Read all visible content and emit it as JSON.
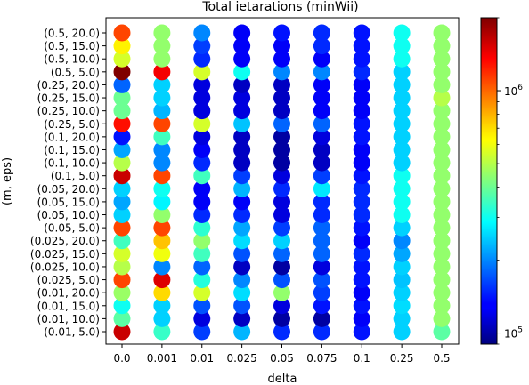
{
  "chart_data": {
    "type": "scatter",
    "title": "Total ietarations (minWii)",
    "xlabel": "delta",
    "ylabel": "(m, eps)",
    "x_categories": [
      "0.0",
      "0.001",
      "0.01",
      "0.025",
      "0.05",
      "0.075",
      "0.1",
      "0.25",
      "0.5"
    ],
    "y_categories": [
      "(0.01, 5.0)",
      "(0.01, 10.0)",
      "(0.01, 15.0)",
      "(0.01, 20.0)",
      "(0.025, 5.0)",
      "(0.025, 10.0)",
      "(0.025, 15.0)",
      "(0.025, 20.0)",
      "(0.05, 5.0)",
      "(0.05, 10.0)",
      "(0.05, 15.0)",
      "(0.05, 20.0)",
      "(0.1, 5.0)",
      "(0.1, 10.0)",
      "(0.1, 15.0)",
      "(0.1, 20.0)",
      "(0.25, 5.0)",
      "(0.25, 10.0)",
      "(0.25, 15.0)",
      "(0.25, 20.0)",
      "(0.5, 5.0)",
      "(0.5, 10.0)",
      "(0.5, 15.0)",
      "(0.5, 20.0)"
    ],
    "colorbar": {
      "scale": "log",
      "colormap": "jet",
      "range": [
        90000,
        2000000
      ],
      "tick_labels": [
        {
          "value": 100000,
          "label": "10^5"
        },
        {
          "value": 1000000,
          "label": "10^6"
        }
      ]
    },
    "grid": false,
    "values": [
      [
        1600000,
        340000,
        160000,
        230000,
        150000,
        150000,
        140000,
        250000,
        380000
      ],
      [
        380000,
        250000,
        120000,
        110000,
        100000,
        100000,
        130000,
        250000,
        450000
      ],
      [
        300000,
        250000,
        170000,
        170000,
        120000,
        140000,
        140000,
        260000,
        450000
      ],
      [
        460000,
        700000,
        550000,
        260000,
        450000,
        160000,
        130000,
        250000,
        450000
      ],
      [
        1100000,
        1500000,
        320000,
        200000,
        170000,
        170000,
        140000,
        240000,
        450000
      ],
      [
        500000,
        200000,
        180000,
        110000,
        100000,
        120000,
        140000,
        250000,
        450000
      ],
      [
        550000,
        600000,
        350000,
        170000,
        180000,
        180000,
        150000,
        220000,
        450000
      ],
      [
        350000,
        750000,
        450000,
        260000,
        250000,
        180000,
        130000,
        200000,
        450000
      ],
      [
        1100000,
        1100000,
        330000,
        220000,
        160000,
        180000,
        140000,
        250000,
        450000
      ],
      [
        250000,
        450000,
        150000,
        150000,
        120000,
        150000,
        150000,
        300000,
        450000
      ],
      [
        220000,
        280000,
        130000,
        130000,
        120000,
        150000,
        150000,
        300000,
        450000
      ],
      [
        250000,
        300000,
        130000,
        230000,
        150000,
        270000,
        150000,
        300000,
        450000
      ],
      [
        1600000,
        1100000,
        350000,
        160000,
        120000,
        160000,
        140000,
        300000,
        450000
      ],
      [
        500000,
        200000,
        150000,
        110000,
        100000,
        110000,
        130000,
        250000,
        450000
      ],
      [
        220000,
        200000,
        130000,
        110000,
        100000,
        110000,
        130000,
        250000,
        450000
      ],
      [
        140000,
        350000,
        120000,
        110000,
        100000,
        120000,
        140000,
        250000,
        450000
      ],
      [
        1300000,
        1100000,
        550000,
        240000,
        180000,
        180000,
        140000,
        250000,
        450000
      ],
      [
        400000,
        230000,
        120000,
        120000,
        110000,
        130000,
        130000,
        250000,
        450000
      ],
      [
        400000,
        250000,
        120000,
        120000,
        110000,
        130000,
        130000,
        250000,
        500000
      ],
      [
        180000,
        250000,
        120000,
        110000,
        110000,
        130000,
        130000,
        250000,
        450000
      ],
      [
        2000000,
        1400000,
        550000,
        300000,
        200000,
        200000,
        150000,
        250000,
        450000
      ],
      [
        550000,
        450000,
        150000,
        130000,
        130000,
        130000,
        140000,
        300000,
        450000
      ],
      [
        650000,
        450000,
        160000,
        130000,
        130000,
        150000,
        140000,
        300000,
        450000
      ],
      [
        1100000,
        450000,
        200000,
        130000,
        140000,
        150000,
        140000,
        300000,
        450000
      ]
    ]
  }
}
